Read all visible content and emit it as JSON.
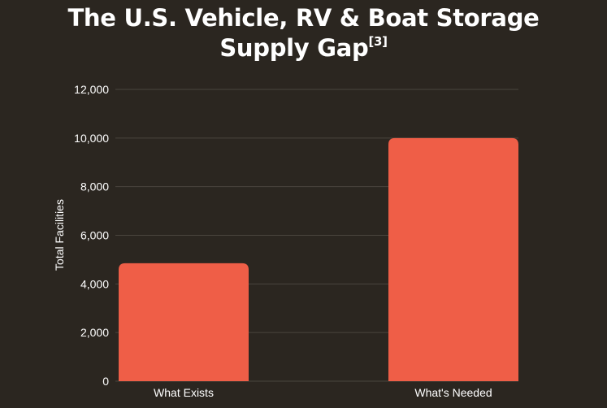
{
  "title_line1": "The U.S. Vehicle, RV & Boat Storage",
  "title_line2": "Supply Gap",
  "title_footnote": "[3]",
  "colors": {
    "background": "#2b2620",
    "bar": "#ef5e47",
    "grid": "#4a453e",
    "text": "#ffffff"
  },
  "chart_data": {
    "type": "bar",
    "title": "The U.S. Vehicle, RV & Boat Storage Supply Gap[3]",
    "categories": [
      "What Exists",
      "What's Needed"
    ],
    "values": [
      4850,
      10000
    ],
    "xlabel": "",
    "ylabel": "Total Facilities",
    "ylim": [
      0,
      12000
    ],
    "yticks": [
      0,
      2000,
      4000,
      6000,
      8000,
      10000,
      12000
    ],
    "ytick_labels": [
      "0",
      "2,000",
      "4,000",
      "6,000",
      "8,000",
      "10,000",
      "12,000"
    ],
    "grid": true,
    "legend": "none"
  }
}
